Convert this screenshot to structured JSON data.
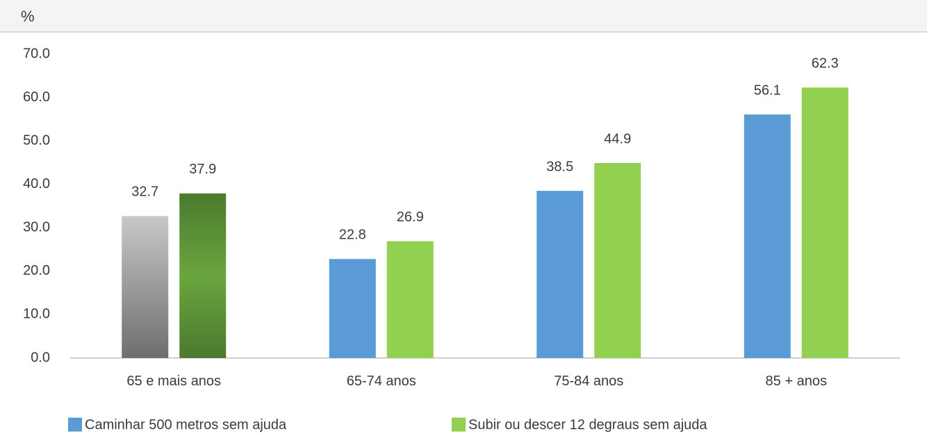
{
  "chart_data": {
    "type": "bar",
    "unit_label": "%",
    "categories": [
      "65 e mais anos",
      "65-74 anos",
      "75-84 anos",
      "85 + anos"
    ],
    "series": [
      {
        "name": "Caminhar 500 metros sem ajuda",
        "color": "#5b9bd5",
        "first_color": [
          "#c8c8c8",
          "#6e6e6e"
        ],
        "values": [
          32.7,
          22.8,
          38.5,
          56.1
        ]
      },
      {
        "name": "Subir ou descer 12 degraus sem ajuda",
        "color": "#92d050",
        "first_color": [
          "#4a7a2e",
          "#6aa63e"
        ],
        "values": [
          37.9,
          26.9,
          44.9,
          62.3
        ]
      }
    ],
    "ylim": [
      0,
      70
    ],
    "yticks": [
      {
        "value": 0,
        "label": "0.0"
      },
      {
        "value": 10,
        "label": "10.0"
      },
      {
        "value": 20,
        "label": "20.0"
      },
      {
        "value": 30,
        "label": "30.0"
      },
      {
        "value": 40,
        "label": "40.0"
      },
      {
        "value": 50,
        "label": "50.0"
      },
      {
        "value": 60,
        "label": "60.0"
      },
      {
        "value": 70,
        "label": "70.0"
      }
    ],
    "grid": false,
    "legend": "bottom"
  }
}
